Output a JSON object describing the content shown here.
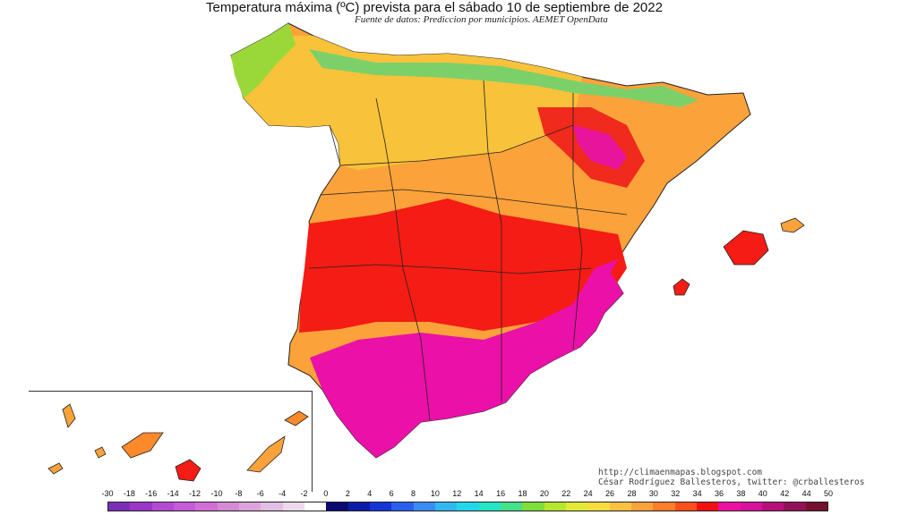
{
  "title": "Temperatura máxima (ºC) prevista para el sábado 10 de septiembre de 2022",
  "subtitle": "Fuente de datos: Prediccion por municipios. AEMET OpenData",
  "credits": {
    "url": "http://climaenmapas.blogspot.com",
    "author": "César Rodríguez Ballesteros, twitter: @crballesteros"
  },
  "legend": {
    "labels": [
      "-30",
      "-18",
      "-16",
      "-14",
      "-12",
      "-10",
      "-8",
      "-6",
      "-4",
      "-2",
      "0",
      "2",
      "4",
      "6",
      "8",
      "10",
      "12",
      "14",
      "16",
      "18",
      "20",
      "22",
      "24",
      "26",
      "28",
      "30",
      "32",
      "34",
      "36",
      "38",
      "40",
      "42",
      "44",
      "50"
    ],
    "colors": [
      "#7b2fb8",
      "#9a36c8",
      "#b54ad2",
      "#c65ad8",
      "#d070d4",
      "#d68ad4",
      "#dca4dc",
      "#e2bee2",
      "#ecdaec",
      "#ffffff",
      "#0a0a70",
      "#0d1ca8",
      "#1436d8",
      "#2a60f0",
      "#3a8cf4",
      "#30b8f0",
      "#22d8e8",
      "#22e6c4",
      "#44e08a",
      "#7ede3a",
      "#b6e62e",
      "#e2ea36",
      "#f8de3a",
      "#fcc040",
      "#fca23a",
      "#fc7e26",
      "#fc4e1a",
      "#f41010",
      "#ee10a0",
      "#d8109c",
      "#b8107a",
      "#941058",
      "#74102e"
    ]
  }
}
